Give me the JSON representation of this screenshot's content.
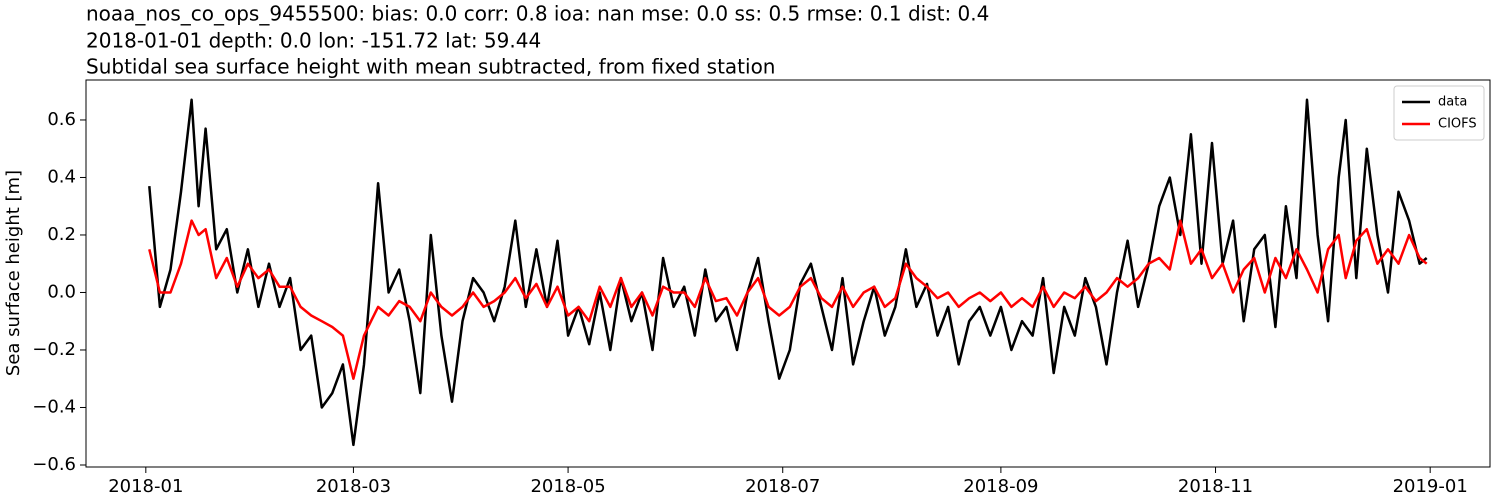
{
  "chart_data": {
    "type": "line",
    "title": [
      "noaa_nos_co_ops_9455500: bias: 0.0  corr: 0.8  ioa: nan  mse: 0.0  ss: 0.5  rmse: 0.1  dist: 0.4",
      "2018-01-01 depth: 0.0 lon: -151.72 lat: 59.44",
      "Subtidal sea surface height with mean subtracted, from fixed station"
    ],
    "y_label": "Sea surface height [m]",
    "x": [
      "2018-01-02",
      "2018-01-05",
      "2018-01-08",
      "2018-01-11",
      "2018-01-14",
      "2018-01-16",
      "2018-01-18",
      "2018-01-21",
      "2018-01-24",
      "2018-01-27",
      "2018-01-30",
      "2018-02-02",
      "2018-02-05",
      "2018-02-08",
      "2018-02-11",
      "2018-02-14",
      "2018-02-17",
      "2018-02-20",
      "2018-02-23",
      "2018-02-26",
      "2018-03-01",
      "2018-03-04",
      "2018-03-06",
      "2018-03-08",
      "2018-03-11",
      "2018-03-14",
      "2018-03-17",
      "2018-03-20",
      "2018-03-23",
      "2018-03-26",
      "2018-03-29",
      "2018-04-01",
      "2018-04-04",
      "2018-04-07",
      "2018-04-10",
      "2018-04-13",
      "2018-04-16",
      "2018-04-19",
      "2018-04-22",
      "2018-04-25",
      "2018-04-28",
      "2018-05-01",
      "2018-05-04",
      "2018-05-07",
      "2018-05-10",
      "2018-05-13",
      "2018-05-16",
      "2018-05-19",
      "2018-05-22",
      "2018-05-25",
      "2018-05-28",
      "2018-05-31",
      "2018-06-03",
      "2018-06-06",
      "2018-06-09",
      "2018-06-12",
      "2018-06-15",
      "2018-06-18",
      "2018-06-21",
      "2018-06-24",
      "2018-06-27",
      "2018-06-30",
      "2018-07-03",
      "2018-07-06",
      "2018-07-09",
      "2018-07-12",
      "2018-07-15",
      "2018-07-18",
      "2018-07-21",
      "2018-07-24",
      "2018-07-27",
      "2018-07-30",
      "2018-08-02",
      "2018-08-05",
      "2018-08-08",
      "2018-08-11",
      "2018-08-14",
      "2018-08-17",
      "2018-08-20",
      "2018-08-23",
      "2018-08-26",
      "2018-08-29",
      "2018-09-01",
      "2018-09-04",
      "2018-09-07",
      "2018-09-10",
      "2018-09-13",
      "2018-09-16",
      "2018-09-19",
      "2018-09-22",
      "2018-09-25",
      "2018-09-28",
      "2018-10-01",
      "2018-10-04",
      "2018-10-07",
      "2018-10-10",
      "2018-10-13",
      "2018-10-16",
      "2018-10-19",
      "2018-10-22",
      "2018-10-25",
      "2018-10-28",
      "2018-10-31",
      "2018-11-03",
      "2018-11-06",
      "2018-11-09",
      "2018-11-12",
      "2018-11-15",
      "2018-11-18",
      "2018-11-21",
      "2018-11-24",
      "2018-11-27",
      "2018-11-30",
      "2018-12-03",
      "2018-12-06",
      "2018-12-08",
      "2018-12-11",
      "2018-12-14",
      "2018-12-17",
      "2018-12-20",
      "2018-12-23",
      "2018-12-26",
      "2018-12-29",
      "2018-12-31"
    ],
    "series": [
      {
        "name": "data",
        "color": "#000000",
        "values": [
          0.37,
          -0.05,
          0.08,
          0.35,
          0.67,
          0.3,
          0.57,
          0.15,
          0.22,
          0.0,
          0.15,
          -0.05,
          0.1,
          -0.05,
          0.05,
          -0.2,
          -0.15,
          -0.4,
          -0.35,
          -0.25,
          -0.53,
          -0.25,
          0.05,
          0.38,
          0.0,
          0.08,
          -0.1,
          -0.35,
          0.2,
          -0.15,
          -0.38,
          -0.1,
          0.05,
          0.0,
          -0.1,
          0.02,
          0.25,
          -0.05,
          0.15,
          -0.05,
          0.18,
          -0.15,
          -0.05,
          -0.18,
          0.0,
          -0.2,
          0.05,
          -0.1,
          0.0,
          -0.2,
          0.12,
          -0.05,
          0.02,
          -0.15,
          0.08,
          -0.1,
          -0.05,
          -0.2,
          0.0,
          0.12,
          -0.1,
          -0.3,
          -0.2,
          0.03,
          0.1,
          -0.05,
          -0.2,
          0.05,
          -0.25,
          -0.1,
          0.02,
          -0.15,
          -0.05,
          0.15,
          -0.05,
          0.03,
          -0.15,
          -0.05,
          -0.25,
          -0.1,
          -0.05,
          -0.15,
          -0.05,
          -0.2,
          -0.1,
          -0.15,
          0.05,
          -0.28,
          -0.05,
          -0.15,
          0.05,
          -0.05,
          -0.25,
          0.0,
          0.18,
          -0.05,
          0.1,
          0.3,
          0.4,
          0.2,
          0.55,
          0.1,
          0.52,
          0.1,
          0.25,
          -0.1,
          0.15,
          0.2,
          -0.12,
          0.3,
          0.05,
          0.67,
          0.2,
          -0.1,
          0.4,
          0.6,
          0.05,
          0.5,
          0.2,
          0.0,
          0.35,
          0.25,
          0.1,
          0.12
        ]
      },
      {
        "name": "CIOFS",
        "color": "#ff0000",
        "values": [
          0.15,
          0.0,
          0.0,
          0.1,
          0.25,
          0.2,
          0.22,
          0.05,
          0.12,
          0.02,
          0.1,
          0.05,
          0.08,
          0.02,
          0.02,
          -0.05,
          -0.08,
          -0.1,
          -0.12,
          -0.15,
          -0.3,
          -0.15,
          -0.1,
          -0.05,
          -0.08,
          -0.03,
          -0.05,
          -0.1,
          0.0,
          -0.05,
          -0.08,
          -0.05,
          0.0,
          -0.05,
          -0.03,
          0.0,
          0.05,
          -0.02,
          0.03,
          -0.05,
          0.02,
          -0.08,
          -0.05,
          -0.1,
          0.02,
          -0.05,
          0.05,
          -0.05,
          0.0,
          -0.08,
          0.02,
          0.0,
          0.0,
          -0.05,
          0.05,
          -0.03,
          -0.02,
          -0.08,
          0.0,
          0.05,
          -0.05,
          -0.08,
          -0.05,
          0.02,
          0.05,
          -0.02,
          -0.05,
          0.02,
          -0.05,
          0.0,
          0.02,
          -0.05,
          -0.02,
          0.1,
          0.05,
          0.02,
          -0.02,
          0.0,
          -0.05,
          -0.02,
          0.0,
          -0.03,
          0.0,
          -0.05,
          -0.02,
          -0.05,
          0.02,
          -0.05,
          0.0,
          -0.02,
          0.02,
          -0.03,
          0.0,
          0.05,
          0.02,
          0.05,
          0.1,
          0.12,
          0.08,
          0.25,
          0.1,
          0.15,
          0.05,
          0.1,
          0.0,
          0.08,
          0.12,
          0.0,
          0.12,
          0.05,
          0.15,
          0.08,
          0.0,
          0.15,
          0.2,
          0.05,
          0.18,
          0.22,
          0.1,
          0.15,
          0.1,
          0.2,
          0.12,
          0.1
        ]
      }
    ],
    "xlim": [
      "2017-12-15",
      "2019-01-18"
    ],
    "xticks": [
      {
        "value": "2018-01-01",
        "label": "2018-01"
      },
      {
        "value": "2018-03-01",
        "label": "2018-03"
      },
      {
        "value": "2018-05-01",
        "label": "2018-05"
      },
      {
        "value": "2018-07-01",
        "label": "2018-07"
      },
      {
        "value": "2018-09-01",
        "label": "2018-09"
      },
      {
        "value": "2018-11-01",
        "label": "2018-11"
      },
      {
        "value": "2019-01-01",
        "label": "2019-01"
      }
    ],
    "ylim": [
      -0.607,
      0.739
    ],
    "yticks": [
      {
        "value": -0.6,
        "label": "−0.6"
      },
      {
        "value": -0.4,
        "label": "−0.4"
      },
      {
        "value": -0.2,
        "label": "−0.2"
      },
      {
        "value": 0,
        "label": "0.0"
      },
      0.2,
      0.4,
      0.6
    ],
    "grid": false,
    "legend": "upper right"
  }
}
